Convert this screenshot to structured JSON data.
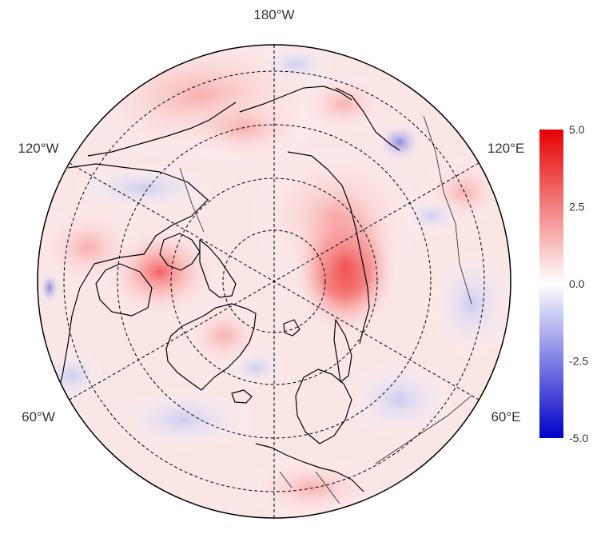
{
  "map": {
    "projection": "north-polar-stereographic",
    "variable_scale": {
      "min": -5.0,
      "max": 5.0
    },
    "longitude_labels": {
      "top": "180°W",
      "upper_left": "120°W",
      "upper_right": "120°E",
      "lower_left": "60°W",
      "lower_right": "60°E"
    },
    "gridlines": "dashed",
    "colors": {
      "max": "#e60000",
      "zero": "#ffffff",
      "min": "#0000c8",
      "coast": "#000000"
    }
  },
  "colorbar": {
    "ticks": [
      "5.0",
      "2.5",
      "0.0",
      "-2.5",
      "-5.0"
    ]
  }
}
